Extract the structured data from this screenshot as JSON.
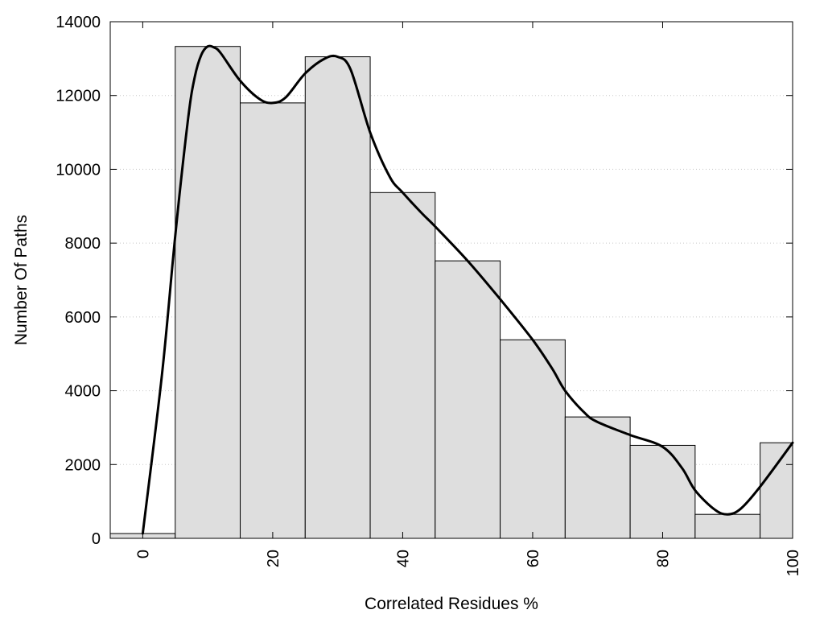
{
  "chart_data": {
    "type": "bar",
    "xlabel": "Correlated Residues %",
    "ylabel": "Number Of Paths",
    "xlim": [
      -5,
      100
    ],
    "ylim": [
      0,
      14000
    ],
    "x_ticks": [
      0,
      20,
      40,
      60,
      80,
      100
    ],
    "y_ticks": [
      0,
      2000,
      4000,
      6000,
      8000,
      10000,
      12000,
      14000
    ],
    "grid": "horizontal-dotted",
    "bar_color": "#dedede",
    "bins": [
      {
        "start": -5,
        "end": 5,
        "value": 130
      },
      {
        "start": 5,
        "end": 15,
        "value": 13330
      },
      {
        "start": 15,
        "end": 25,
        "value": 11800
      },
      {
        "start": 25,
        "end": 35,
        "value": 13050
      },
      {
        "start": 35,
        "end": 45,
        "value": 9370
      },
      {
        "start": 45,
        "end": 55,
        "value": 7520
      },
      {
        "start": 55,
        "end": 65,
        "value": 5380
      },
      {
        "start": 65,
        "end": 75,
        "value": 3290
      },
      {
        "start": 75,
        "end": 85,
        "value": 2520
      },
      {
        "start": 85,
        "end": 95,
        "value": 650
      },
      {
        "start": 95,
        "end": 105,
        "value": 2590
      }
    ],
    "curve": {
      "type": "line",
      "color": "#000000",
      "x": [
        0,
        3,
        5,
        7,
        8,
        9,
        10,
        11,
        12,
        15,
        18,
        20,
        22,
        25,
        28,
        30,
        32,
        35,
        38,
        40,
        43,
        45,
        50,
        55,
        60,
        63,
        65,
        68,
        70,
        75,
        80,
        83,
        85,
        88,
        90,
        92,
        95,
        100
      ],
      "y": [
        130,
        4500,
        8200,
        11400,
        12500,
        13100,
        13330,
        13300,
        13150,
        12400,
        11900,
        11800,
        11950,
        12600,
        13000,
        13050,
        12700,
        11000,
        9800,
        9370,
        8800,
        8450,
        7520,
        6480,
        5380,
        4600,
        4000,
        3400,
        3150,
        2800,
        2480,
        1900,
        1300,
        780,
        650,
        800,
        1400,
        2590
      ]
    }
  }
}
